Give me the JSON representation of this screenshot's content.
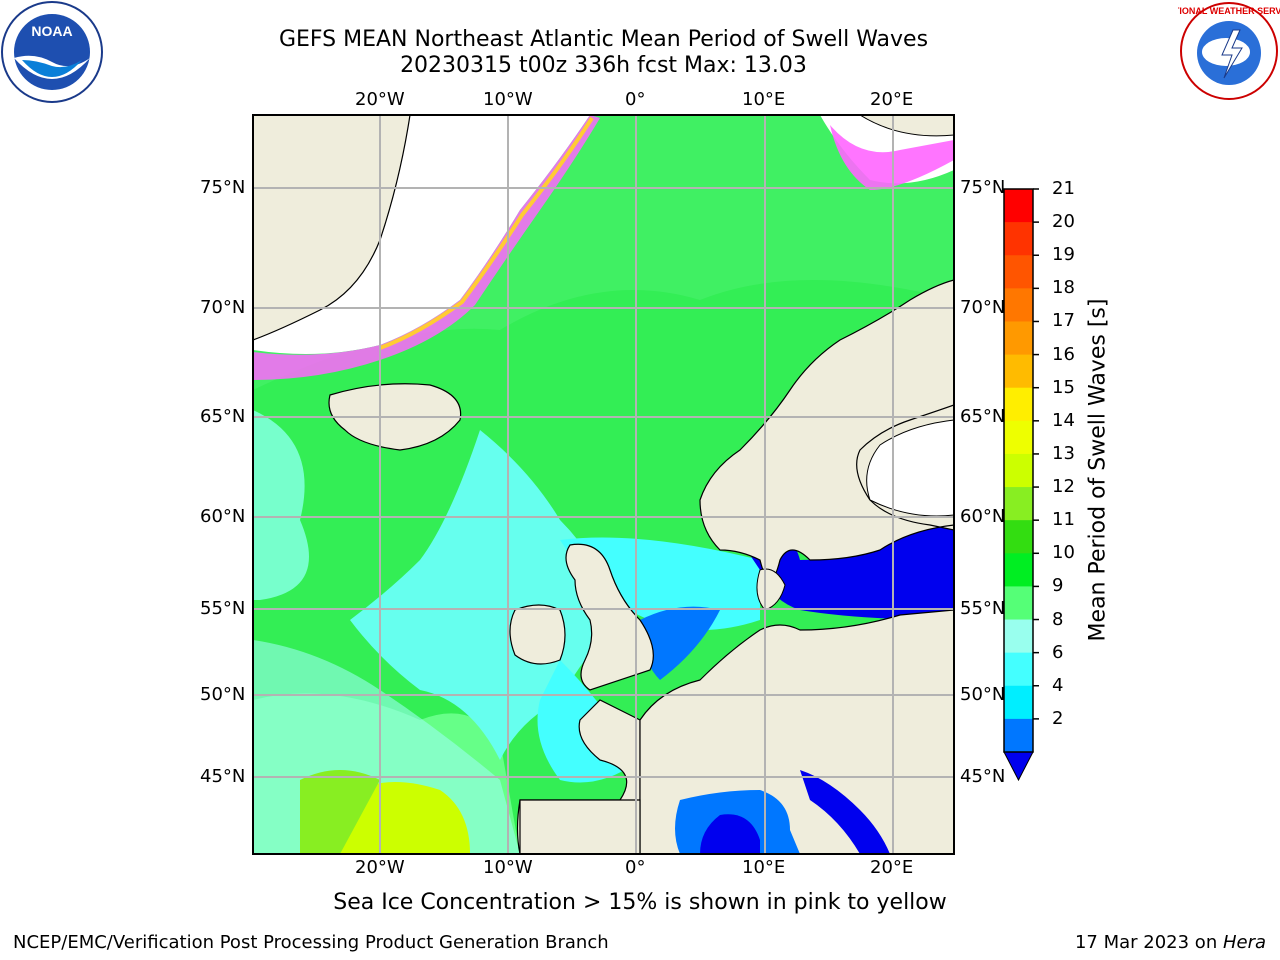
{
  "header": {
    "title_line1": "GEFS MEAN Northeast Atlantic Mean Period of Swell Waves",
    "title_line2": "20230315 t00z 336h fcst   Max: 13.03"
  },
  "logos": {
    "left": {
      "name": "noaa-logo",
      "text": "NOAA"
    },
    "right": {
      "name": "national-weather-service-logo",
      "text": "NATIONAL WEATHER SERVICE"
    }
  },
  "map": {
    "lon_labels": [
      "20°W",
      "10°W",
      "0°",
      "10°E",
      "20°E"
    ],
    "lat_labels": [
      "75°N",
      "70°N",
      "65°N",
      "60°N",
      "55°N",
      "50°N",
      "45°N"
    ]
  },
  "colorbar": {
    "label": "Mean Period of Swell Waves [s]",
    "ticks": [
      "21",
      "20",
      "19",
      "18",
      "17",
      "16",
      "15",
      "14",
      "13",
      "12",
      "11",
      "10",
      "9",
      "8",
      "6",
      "4",
      "2"
    ],
    "colors": [
      "#ff0000",
      "#ff3300",
      "#ff5500",
      "#ff7700",
      "#ff9900",
      "#ffbb00",
      "#ffee00",
      "#eeff00",
      "#ccff00",
      "#88ee22",
      "#33dd11",
      "#00ee22",
      "#55ff77",
      "#99ffee",
      "#44ffff",
      "#00eeff",
      "#0077ff"
    ],
    "extend_color": "#0000ee"
  },
  "note": "Sea Ice Concentration > 15% is shown in pink to yellow",
  "footer": {
    "left": "NCEP/EMC/Verification Post Processing Product Generation Branch",
    "right_prefix": "17 Mar 2023 on ",
    "right_italic": "Hera"
  }
}
